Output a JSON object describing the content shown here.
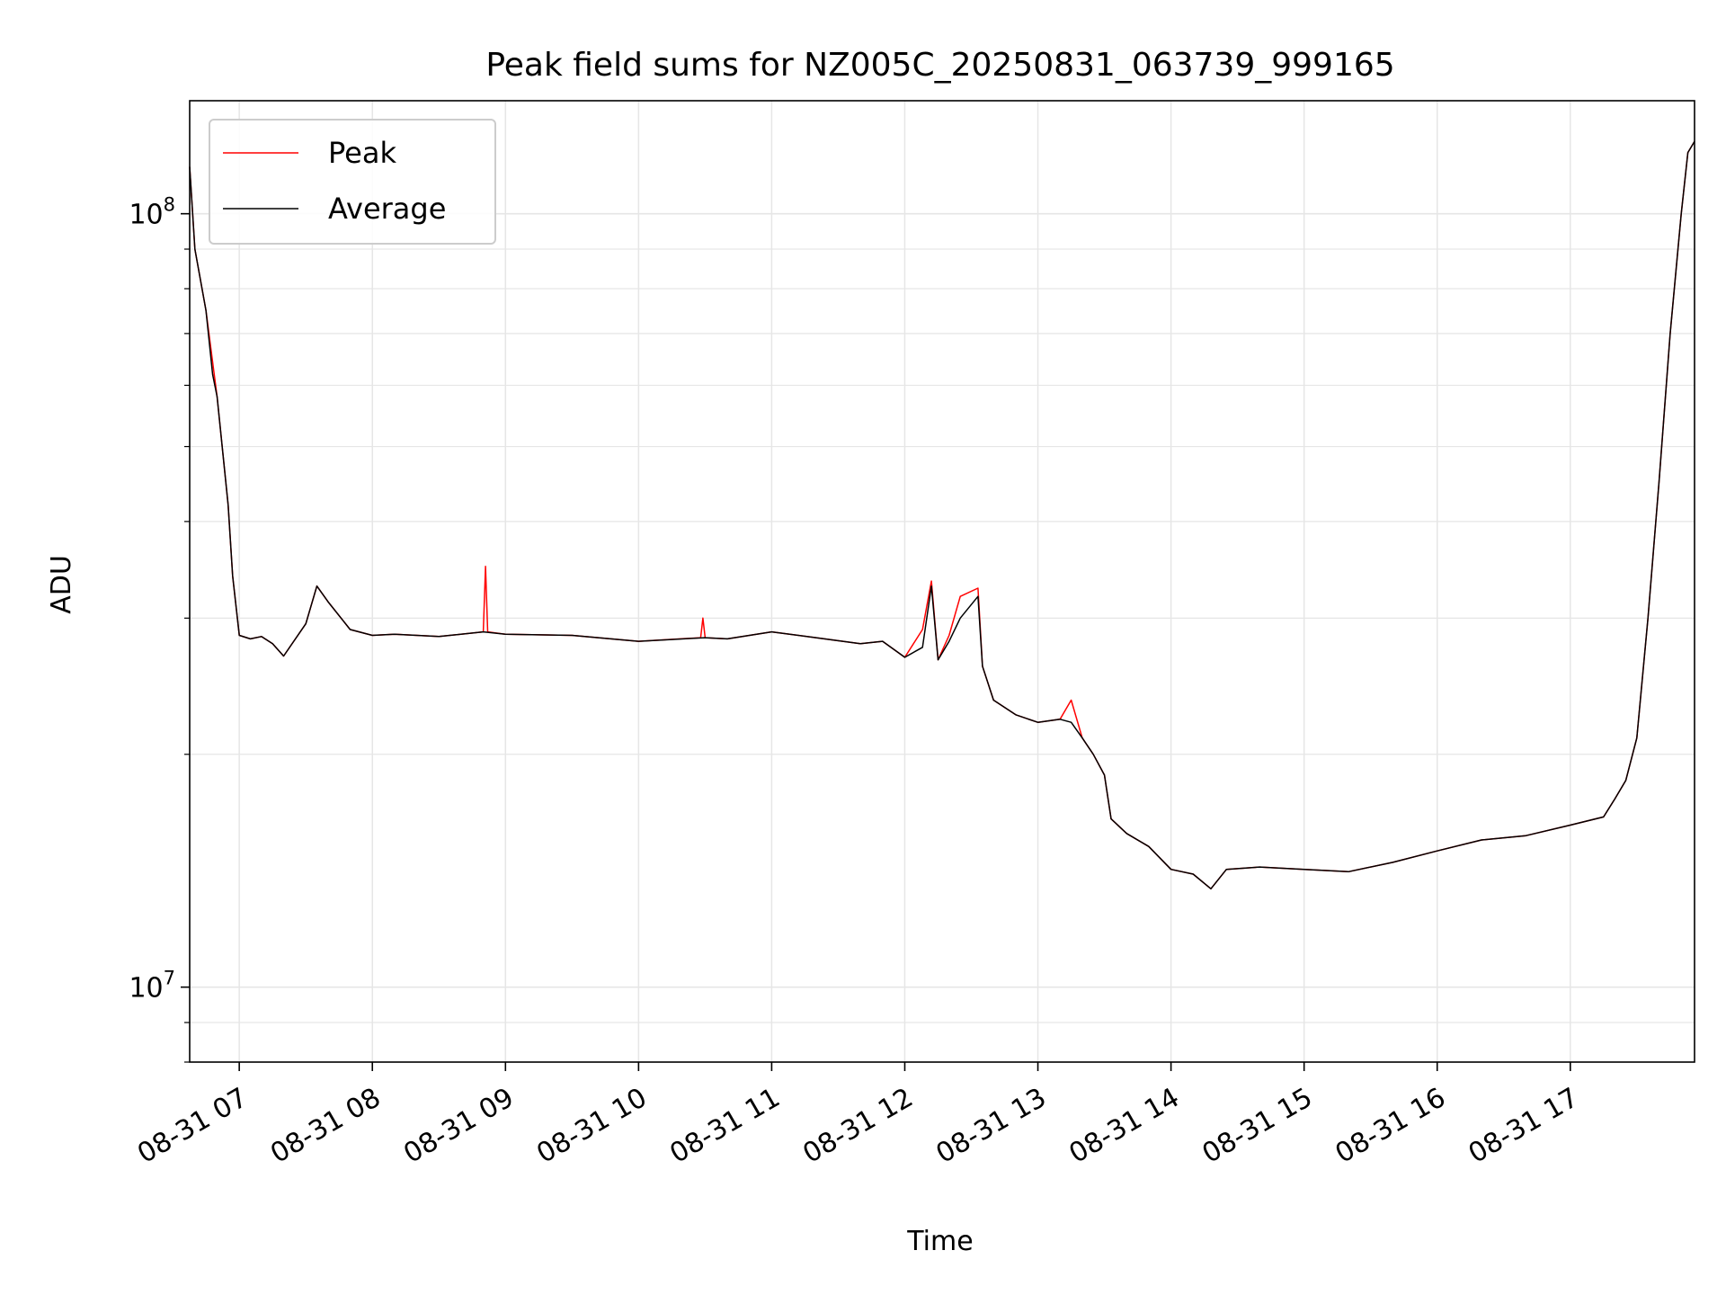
{
  "chart_data": {
    "type": "line",
    "title": "Peak field sums for NZ005C_20250831_063739_999165",
    "xlabel": "Time",
    "ylabel": "ADU",
    "yscale": "log",
    "ylim": [
      8000000,
      140000000
    ],
    "xlim": [
      "2025-08-31 06:37:39",
      "2025-08-31 17:56:00"
    ],
    "x_ticks": [
      {
        "t": "2025-08-31 07:00",
        "label": "08-31 07"
      },
      {
        "t": "2025-08-31 08:00",
        "label": "08-31 08"
      },
      {
        "t": "2025-08-31 09:00",
        "label": "08-31 09"
      },
      {
        "t": "2025-08-31 10:00",
        "label": "08-31 10"
      },
      {
        "t": "2025-08-31 11:00",
        "label": "08-31 11"
      },
      {
        "t": "2025-08-31 12:00",
        "label": "08-31 12"
      },
      {
        "t": "2025-08-31 13:00",
        "label": "08-31 13"
      },
      {
        "t": "2025-08-31 14:00",
        "label": "08-31 14"
      },
      {
        "t": "2025-08-31 15:00",
        "label": "08-31 15"
      },
      {
        "t": "2025-08-31 16:00",
        "label": "08-31 16"
      },
      {
        "t": "2025-08-31 17:00",
        "label": "08-31 17"
      }
    ],
    "y_ticks": [
      {
        "value": 10000000,
        "base": "10",
        "exp": "7"
      },
      {
        "value": 100000000,
        "base": "10",
        "exp": "8"
      }
    ],
    "grid": true,
    "legend": "top-left",
    "series": [
      {
        "name": "Peak",
        "color": "#ff0000",
        "x": [
          "2025-08-31 06:37:39",
          "2025-08-31 06:40",
          "2025-08-31 06:45",
          "2025-08-31 06:50",
          "2025-08-31 06:55",
          "2025-08-31 06:57",
          "2025-08-31 07:00",
          "2025-08-31 07:05",
          "2025-08-31 07:10",
          "2025-08-31 07:15",
          "2025-08-31 07:20",
          "2025-08-31 07:30",
          "2025-08-31 07:35",
          "2025-08-31 07:40",
          "2025-08-31 07:50",
          "2025-08-31 08:00",
          "2025-08-31 08:10",
          "2025-08-31 08:30",
          "2025-08-31 08:50",
          "2025-08-31 08:51",
          "2025-08-31 08:52",
          "2025-08-31 09:00",
          "2025-08-31 09:30",
          "2025-08-31 10:00",
          "2025-08-31 10:28",
          "2025-08-31 10:29",
          "2025-08-31 10:30",
          "2025-08-31 10:40",
          "2025-08-31 11:00",
          "2025-08-31 11:20",
          "2025-08-31 11:40",
          "2025-08-31 11:50",
          "2025-08-31 12:00",
          "2025-08-31 12:08",
          "2025-08-31 12:12",
          "2025-08-31 12:15",
          "2025-08-31 12:20",
          "2025-08-31 12:25",
          "2025-08-31 12:33",
          "2025-08-31 12:35",
          "2025-08-31 12:40",
          "2025-08-31 12:50",
          "2025-08-31 13:00",
          "2025-08-31 13:10",
          "2025-08-31 13:15",
          "2025-08-31 13:20",
          "2025-08-31 13:25",
          "2025-08-31 13:30",
          "2025-08-31 13:33",
          "2025-08-31 13:40",
          "2025-08-31 13:50",
          "2025-08-31 14:00",
          "2025-08-31 14:10",
          "2025-08-31 14:18",
          "2025-08-31 14:25",
          "2025-08-31 14:40",
          "2025-08-31 15:00",
          "2025-08-31 15:20",
          "2025-08-31 15:40",
          "2025-08-31 16:00",
          "2025-08-31 16:20",
          "2025-08-31 16:40",
          "2025-08-31 17:00",
          "2025-08-31 17:15",
          "2025-08-31 17:20",
          "2025-08-31 17:25",
          "2025-08-31 17:30",
          "2025-08-31 17:35",
          "2025-08-31 17:40",
          "2025-08-31 17:45",
          "2025-08-31 17:50",
          "2025-08-31 17:53",
          "2025-08-31 17:56"
        ],
        "y": [
          115000000,
          90000000,
          75000000,
          58000000,
          42000000,
          34000000,
          28500000,
          28200000,
          28400000,
          27800000,
          26800000,
          29500000,
          33000000,
          31500000,
          29000000,
          28500000,
          28600000,
          28400000,
          28800000,
          35000000,
          28800000,
          28600000,
          28500000,
          28000000,
          28300000,
          30000000,
          28300000,
          28200000,
          28800000,
          28300000,
          27800000,
          28000000,
          26700000,
          29000000,
          33500000,
          26500000,
          28500000,
          32000000,
          32800000,
          26000000,
          23500000,
          22500000,
          22000000,
          22200000,
          23500000,
          21000000,
          20000000,
          18800000,
          16500000,
          15800000,
          15200000,
          14200000,
          14000000,
          13400000,
          14200000,
          14300000,
          14200000,
          14100000,
          14500000,
          15000000,
          15500000,
          15700000,
          16200000,
          16600000,
          17500000,
          18500000,
          21000000,
          30000000,
          45000000,
          70000000,
          100000000,
          120000000,
          124000000
        ]
      },
      {
        "name": "Average",
        "color": "#000000",
        "x": [
          "2025-08-31 06:37:39",
          "2025-08-31 06:40",
          "2025-08-31 06:45",
          "2025-08-31 06:48",
          "2025-08-31 06:50",
          "2025-08-31 06:55",
          "2025-08-31 06:57",
          "2025-08-31 07:00",
          "2025-08-31 07:05",
          "2025-08-31 07:10",
          "2025-08-31 07:15",
          "2025-08-31 07:20",
          "2025-08-31 07:30",
          "2025-08-31 07:35",
          "2025-08-31 07:40",
          "2025-08-31 07:50",
          "2025-08-31 08:00",
          "2025-08-31 08:10",
          "2025-08-31 08:30",
          "2025-08-31 08:50",
          "2025-08-31 09:00",
          "2025-08-31 09:30",
          "2025-08-31 10:00",
          "2025-08-31 10:30",
          "2025-08-31 10:40",
          "2025-08-31 11:00",
          "2025-08-31 11:20",
          "2025-08-31 11:40",
          "2025-08-31 11:50",
          "2025-08-31 12:00",
          "2025-08-31 12:08",
          "2025-08-31 12:12",
          "2025-08-31 12:15",
          "2025-08-31 12:20",
          "2025-08-31 12:25",
          "2025-08-31 12:33",
          "2025-08-31 12:35",
          "2025-08-31 12:40",
          "2025-08-31 12:50",
          "2025-08-31 13:00",
          "2025-08-31 13:10",
          "2025-08-31 13:15",
          "2025-08-31 13:20",
          "2025-08-31 13:25",
          "2025-08-31 13:30",
          "2025-08-31 13:33",
          "2025-08-31 13:40",
          "2025-08-31 13:50",
          "2025-08-31 14:00",
          "2025-08-31 14:10",
          "2025-08-31 14:18",
          "2025-08-31 14:25",
          "2025-08-31 14:40",
          "2025-08-31 15:00",
          "2025-08-31 15:20",
          "2025-08-31 15:40",
          "2025-08-31 16:00",
          "2025-08-31 16:20",
          "2025-08-31 16:40",
          "2025-08-31 17:00",
          "2025-08-31 17:15",
          "2025-08-31 17:20",
          "2025-08-31 17:25",
          "2025-08-31 17:30",
          "2025-08-31 17:35",
          "2025-08-31 17:40",
          "2025-08-31 17:45",
          "2025-08-31 17:50",
          "2025-08-31 17:53",
          "2025-08-31 17:56"
        ],
        "y": [
          115000000,
          90000000,
          75000000,
          62000000,
          58000000,
          42000000,
          34000000,
          28500000,
          28200000,
          28400000,
          27800000,
          26800000,
          29500000,
          33000000,
          31500000,
          29000000,
          28500000,
          28600000,
          28400000,
          28800000,
          28600000,
          28500000,
          28000000,
          28300000,
          28200000,
          28800000,
          28300000,
          27800000,
          28000000,
          26700000,
          27500000,
          33000000,
          26500000,
          28000000,
          30000000,
          32000000,
          26000000,
          23500000,
          22500000,
          22000000,
          22200000,
          22000000,
          21000000,
          20000000,
          18800000,
          16500000,
          15800000,
          15200000,
          14200000,
          14000000,
          13400000,
          14200000,
          14300000,
          14200000,
          14100000,
          14500000,
          15000000,
          15500000,
          15700000,
          16200000,
          16600000,
          17500000,
          18500000,
          21000000,
          30000000,
          45000000,
          70000000,
          100000000,
          120000000,
          124000000
        ]
      }
    ]
  }
}
